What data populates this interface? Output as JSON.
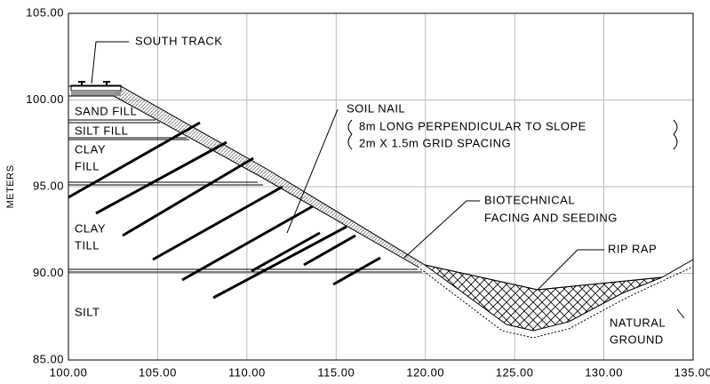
{
  "axes": {
    "y_label": "METERS",
    "y_ticks": [
      "105.00",
      "100.00",
      "95.00",
      "90.00",
      "85.00"
    ],
    "x_ticks": [
      "100.00",
      "105.00",
      "110.00",
      "115.00",
      "120.00",
      "125.00",
      "130.00",
      "135.00"
    ]
  },
  "layers": [
    "SAND FILL",
    "SILT FILL",
    "CLAY",
    "FILL",
    "CLAY",
    "TILL",
    "SILT"
  ],
  "annotations": {
    "south_track": "SOUTH TRACK",
    "soil_nail": "SOIL NAIL",
    "soil_nail_length": "8m LONG PERPENDICULAR TO SLOPE",
    "soil_nail_spacing": "2m X 1.5m GRID SPACING",
    "facing_1": "BIOTECHNICAL",
    "facing_2": "FACING AND SEEDING",
    "rip_rap": "RIP RAP",
    "natural_1": "NATURAL",
    "natural_2": "GROUND"
  }
}
